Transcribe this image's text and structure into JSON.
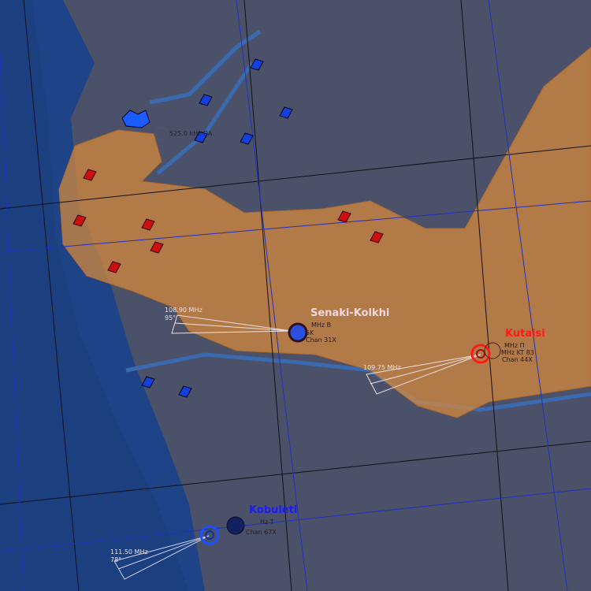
{
  "airfields": [
    {
      "name": "Senaki-Kolkhi",
      "color": "#f0d8e0",
      "ils_freq": "108.90 MHz",
      "ils_course": "95°",
      "tacan": "Chan 31X",
      "info_partial_1": "MHz B",
      "info_partial_2": "5K"
    },
    {
      "name": "Kutaisi",
      "color": "#ff1a1a",
      "ils_freq": "109.75 MHz",
      "tacan": "Chan 44X",
      "info_partial_1": "MHz П",
      "info_partial_2": "MHz KT 83"
    },
    {
      "name": "Kobuleti",
      "color": "#1a1aff",
      "ils_freq": "111.50 MHz",
      "ils_course": "78°",
      "tacan": "Chan 67X",
      "info_partial_1": "Hz T"
    }
  ],
  "ndb": {
    "label": "525.0 kHz DA"
  },
  "colors": {
    "sea": "#1e4487",
    "land": "#4a5068",
    "zone": "#d98a3a",
    "red_unit": "#cc1010",
    "blue_unit": "#1040e0",
    "grid_black": "#101018",
    "grid_blue": "#2030c0"
  }
}
